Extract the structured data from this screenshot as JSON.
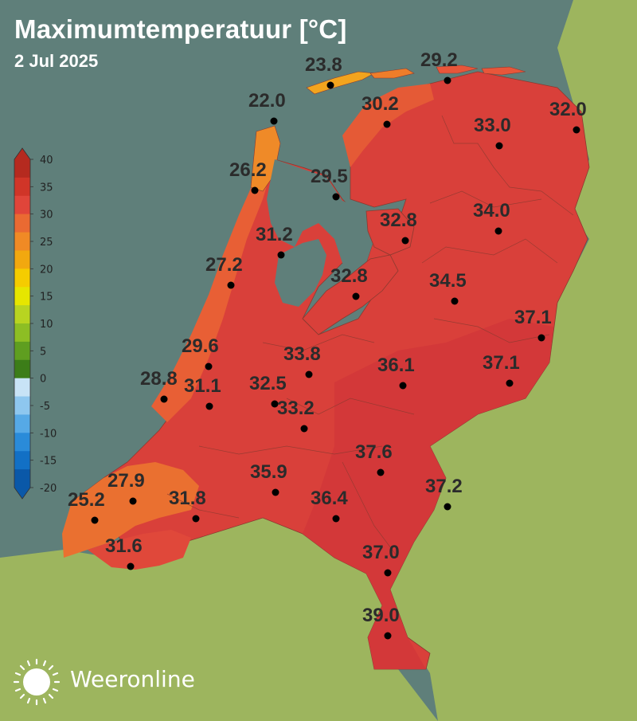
{
  "header": {
    "title": "Maximumtemperatuur [°C]",
    "date": "2 Jul 2025"
  },
  "brand": {
    "name": "Weeronline",
    "icon": "sun-icon"
  },
  "colors": {
    "sea": "#5f7f7a",
    "land_abroad": "#9db55e",
    "land_nl_hot": "#d9403a",
    "land_nl_warm": "#e2573a",
    "coast_orange": "#ef7d2a",
    "dot": "#000000"
  },
  "colorbar": {
    "ticks": [
      "40",
      "35",
      "30",
      "25",
      "20",
      "15",
      "10",
      "5",
      "0",
      "-5",
      "-10",
      "-15",
      "-20"
    ],
    "segment_colors": [
      "#b52a1f",
      "#d03528",
      "#e0453a",
      "#ea6a32",
      "#f08a25",
      "#f2a80f",
      "#f5cc00",
      "#e6e600",
      "#b8d421",
      "#8dbe24",
      "#5f9e20",
      "#3c7d18",
      "#c8e3f6",
      "#8ec7ef",
      "#56a9e6",
      "#2a8bd9",
      "#1270c5",
      "#0a58a8"
    ]
  },
  "stations": [
    {
      "id": "texel-north",
      "value": "23.8",
      "label": "23.8"
    },
    {
      "id": "schiermonnikoog",
      "value": "29.2",
      "label": "29.2"
    },
    {
      "id": "den-helder",
      "value": "22.0",
      "label": "22.0"
    },
    {
      "id": "leeuwarden",
      "value": "30.2",
      "label": "30.2"
    },
    {
      "id": "nieuw-beerta",
      "value": "32.0",
      "label": "32.0"
    },
    {
      "id": "eelde",
      "value": "33.0",
      "label": "33.0"
    },
    {
      "id": "berkhout",
      "value": "26.2",
      "label": "26.2"
    },
    {
      "id": "stavoren",
      "value": "29.5",
      "label": "29.5"
    },
    {
      "id": "hoogeveen",
      "value": "34.0",
      "label": "34.0"
    },
    {
      "id": "lelystad-north",
      "value": "32.8",
      "label": "32.8"
    },
    {
      "id": "wijk-aan-zee",
      "value": "31.2",
      "label": "31.2"
    },
    {
      "id": "ijmuiden",
      "value": "27.2",
      "label": "27.2"
    },
    {
      "id": "lelystad",
      "value": "32.8",
      "label": "32.8"
    },
    {
      "id": "heino",
      "value": "34.5",
      "label": "34.5"
    },
    {
      "id": "twenthe",
      "value": "37.1",
      "label": "37.1"
    },
    {
      "id": "voorschoten",
      "value": "29.6",
      "label": "29.6"
    },
    {
      "id": "de-bilt",
      "value": "33.8",
      "label": "33.8"
    },
    {
      "id": "deelen",
      "value": "36.1",
      "label": "36.1"
    },
    {
      "id": "hupsel",
      "value": "37.1",
      "label": "37.1"
    },
    {
      "id": "hoek-van-holland",
      "value": "28.8",
      "label": "28.8"
    },
    {
      "id": "rotterdam",
      "value": "31.1",
      "label": "31.1"
    },
    {
      "id": "cabauw",
      "value": "32.5",
      "label": "32.5"
    },
    {
      "id": "herwijnen",
      "value": "33.2",
      "label": "33.2"
    },
    {
      "id": "volkel",
      "value": "37.6",
      "label": "37.6"
    },
    {
      "id": "arcen",
      "value": "37.2",
      "label": "37.2"
    },
    {
      "id": "wilhelminadorp",
      "value": "27.9",
      "label": "27.9"
    },
    {
      "id": "vlissingen",
      "value": "25.2",
      "label": "25.2"
    },
    {
      "id": "woensdrecht",
      "value": "31.8",
      "label": "31.8"
    },
    {
      "id": "gilze-rijen",
      "value": "35.9",
      "label": "35.9"
    },
    {
      "id": "eindhoven",
      "value": "36.4",
      "label": "36.4"
    },
    {
      "id": "westdorpe",
      "value": "31.6",
      "label": "31.6"
    },
    {
      "id": "ell",
      "value": "37.0",
      "label": "37.0"
    },
    {
      "id": "maastricht",
      "value": "39.0",
      "label": "39.0"
    }
  ]
}
